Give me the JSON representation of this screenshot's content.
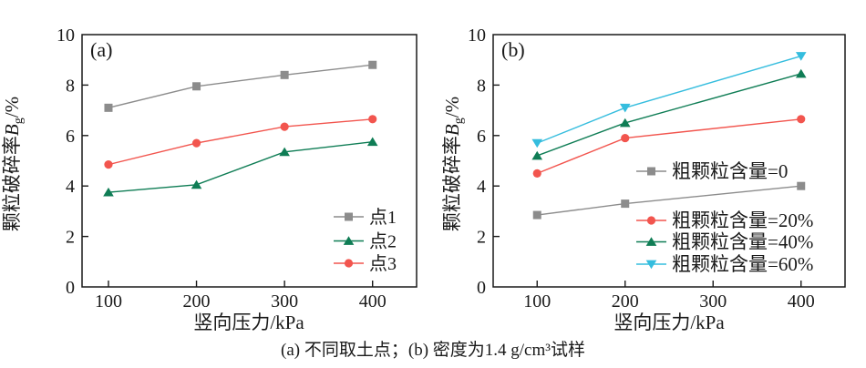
{
  "figure": {
    "caption": "(a) 不同取土点；(b) 密度为1.4 g/cm³试样"
  },
  "chart_data": [
    {
      "type": "line",
      "panel_label": "(a)",
      "title": "",
      "xlabel": "竖向压力/kPa",
      "ylabel": {
        "prefix": "颗粒破碎率",
        "var": "B",
        "sub": "g",
        "suffix": "/%"
      },
      "xlim": [
        70,
        450
      ],
      "ylim": [
        0,
        10
      ],
      "xticks": [
        100,
        200,
        300,
        400
      ],
      "yticks": [
        0,
        2,
        4,
        6,
        8,
        10
      ],
      "grid": "off",
      "legend_position": "lower right",
      "x": [
        100,
        200,
        300,
        400
      ],
      "series": [
        {
          "name": "点1",
          "marker": "square",
          "color": "#8c8c8c",
          "values": [
            7.1,
            7.95,
            8.4,
            8.8
          ]
        },
        {
          "name": "点2",
          "marker": "triangle-up",
          "color": "#0f7d55",
          "values": [
            3.75,
            4.05,
            5.35,
            5.75
          ]
        },
        {
          "name": "点3",
          "marker": "circle",
          "color": "#f2554e",
          "values": [
            4.85,
            5.7,
            6.35,
            6.65
          ]
        }
      ]
    },
    {
      "type": "line",
      "panel_label": "(b)",
      "title": "",
      "xlabel": "竖向压力/kPa",
      "ylabel": {
        "prefix": "颗粒破碎率",
        "var": "B",
        "sub": "g",
        "suffix": "/%"
      },
      "xlim": [
        50,
        450
      ],
      "ylim": [
        0,
        10
      ],
      "xticks": [
        100,
        200,
        300,
        400
      ],
      "yticks": [
        0,
        2,
        4,
        6,
        8,
        10
      ],
      "grid": "off",
      "legend_position": "center right",
      "x": [
        100,
        200,
        400
      ],
      "series": [
        {
          "name": "粗颗粒含量=0",
          "marker": "square",
          "color": "#8c8c8c",
          "values": [
            2.85,
            3.3,
            4.0
          ]
        },
        {
          "name": "粗颗粒含量=20%",
          "marker": "circle",
          "color": "#f2554e",
          "values": [
            4.5,
            5.9,
            6.65
          ]
        },
        {
          "name": "粗颗粒含量=40%",
          "marker": "triangle-up",
          "color": "#0f7d55",
          "values": [
            5.2,
            6.5,
            8.45
          ]
        },
        {
          "name": "粗颗粒含量=60%",
          "marker": "triangle-down",
          "color": "#35bdde",
          "values": [
            5.7,
            7.1,
            9.15
          ]
        }
      ]
    }
  ]
}
